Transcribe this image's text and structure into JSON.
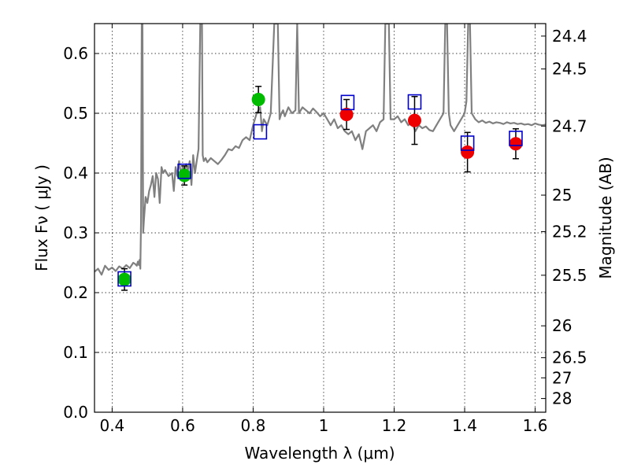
{
  "chart_data": {
    "type": "scatter",
    "xlabel": "Wavelength  λ (μm)",
    "ylabel": "Flux  Fν  ( μJy )",
    "y2label": "Magnitude (AB)",
    "xlim": [
      0.35,
      1.63
    ],
    "ylim": [
      0.0,
      0.65
    ],
    "x_ticks": [
      {
        "value": 0.4,
        "label": "0.4"
      },
      {
        "value": 0.6,
        "label": "0.6"
      },
      {
        "value": 0.8,
        "label": "0.8"
      },
      {
        "value": 1.0,
        "label": "1"
      },
      {
        "value": 1.2,
        "label": "1.2"
      },
      {
        "value": 1.4,
        "label": "1.4"
      },
      {
        "value": 1.6,
        "label": "1.6"
      }
    ],
    "y_ticks": [
      {
        "value": 0.0,
        "label": "0.0"
      },
      {
        "value": 0.1,
        "label": "0.1"
      },
      {
        "value": 0.2,
        "label": "0.2"
      },
      {
        "value": 0.3,
        "label": "0.3"
      },
      {
        "value": 0.4,
        "label": "0.4"
      },
      {
        "value": 0.5,
        "label": "0.5"
      },
      {
        "value": 0.6,
        "label": "0.6"
      }
    ],
    "y2_ticks": [
      {
        "flux": 0.6291,
        "label": "24.4"
      },
      {
        "flux": 0.5741,
        "label": "24.5"
      },
      {
        "flux": 0.4786,
        "label": "24.7"
      },
      {
        "flux": 0.3631,
        "label": "25"
      },
      {
        "flux": 0.302,
        "label": "25.2"
      },
      {
        "flux": 0.2291,
        "label": "25.5"
      },
      {
        "flux": 0.1445,
        "label": "26"
      },
      {
        "flux": 0.0912,
        "label": "26.5"
      },
      {
        "flux": 0.0575,
        "label": "27"
      },
      {
        "flux": 0.0229,
        "label": "28"
      }
    ],
    "grid": true,
    "colors": {
      "model": "#808080",
      "green": "#00bb00",
      "red": "#ee0000",
      "squares": "#0000cc",
      "errorbars": "#000000"
    },
    "series": [
      {
        "kind": "line",
        "x": [
          0.35,
          0.36,
          0.37,
          0.38,
          0.39,
          0.4,
          0.41,
          0.42,
          0.43,
          0.44,
          0.45,
          0.46,
          0.465,
          0.47,
          0.473,
          0.476,
          0.478,
          0.48,
          0.482,
          0.484,
          0.486,
          0.488,
          0.49,
          0.495,
          0.5,
          0.505,
          0.51,
          0.515,
          0.52,
          0.525,
          0.53,
          0.535,
          0.54,
          0.545,
          0.55,
          0.56,
          0.57,
          0.575,
          0.58,
          0.585,
          0.59,
          0.595,
          0.6,
          0.605,
          0.61,
          0.615,
          0.62,
          0.625,
          0.63,
          0.635,
          0.64,
          0.645,
          0.65,
          0.652,
          0.655,
          0.657,
          0.66,
          0.665,
          0.67,
          0.68,
          0.69,
          0.7,
          0.71,
          0.72,
          0.73,
          0.74,
          0.75,
          0.76,
          0.77,
          0.78,
          0.79,
          0.8,
          0.81,
          0.82,
          0.825,
          0.83,
          0.84,
          0.85,
          0.86,
          0.865,
          0.87,
          0.875,
          0.88,
          0.885,
          0.89,
          0.9,
          0.91,
          0.92,
          0.925,
          0.93,
          0.935,
          0.94,
          0.95,
          0.96,
          0.97,
          0.98,
          0.99,
          1.0,
          1.01,
          1.02,
          1.03,
          1.04,
          1.05,
          1.06,
          1.07,
          1.08,
          1.09,
          1.1,
          1.11,
          1.12,
          1.13,
          1.14,
          1.15,
          1.16,
          1.17,
          1.175,
          1.18,
          1.185,
          1.19,
          1.2,
          1.21,
          1.22,
          1.23,
          1.24,
          1.25,
          1.26,
          1.27,
          1.28,
          1.29,
          1.3,
          1.31,
          1.32,
          1.33,
          1.34,
          1.345,
          1.35,
          1.355,
          1.36,
          1.37,
          1.38,
          1.39,
          1.4,
          1.405,
          1.41,
          1.415,
          1.42,
          1.43,
          1.44,
          1.45,
          1.46,
          1.47,
          1.48,
          1.49,
          1.5,
          1.51,
          1.52,
          1.53,
          1.54,
          1.55,
          1.56,
          1.57,
          1.58,
          1.59,
          1.6,
          1.61,
          1.62,
          1.63
        ],
        "y": [
          0.235,
          0.24,
          0.23,
          0.245,
          0.238,
          0.242,
          0.236,
          0.244,
          0.24,
          0.246,
          0.241,
          0.25,
          0.248,
          0.245,
          0.252,
          0.246,
          0.255,
          0.24,
          0.32,
          0.65,
          0.65,
          0.3,
          0.32,
          0.36,
          0.35,
          0.37,
          0.38,
          0.395,
          0.36,
          0.4,
          0.39,
          0.35,
          0.41,
          0.4,
          0.405,
          0.395,
          0.4,
          0.37,
          0.41,
          0.395,
          0.42,
          0.398,
          0.41,
          0.4,
          0.415,
          0.405,
          0.42,
          0.38,
          0.43,
          0.4,
          0.42,
          0.44,
          0.65,
          0.65,
          0.65,
          0.43,
          0.42,
          0.425,
          0.418,
          0.425,
          0.42,
          0.415,
          0.422,
          0.43,
          0.44,
          0.438,
          0.445,
          0.442,
          0.455,
          0.46,
          0.455,
          0.48,
          0.5,
          0.51,
          0.47,
          0.49,
          0.48,
          0.5,
          0.65,
          0.65,
          0.65,
          0.49,
          0.5,
          0.505,
          0.495,
          0.51,
          0.5,
          0.505,
          0.65,
          0.5,
          0.505,
          0.51,
          0.505,
          0.5,
          0.508,
          0.502,
          0.495,
          0.5,
          0.49,
          0.48,
          0.49,
          0.475,
          0.48,
          0.47,
          0.465,
          0.47,
          0.455,
          0.465,
          0.44,
          0.47,
          0.475,
          0.48,
          0.47,
          0.485,
          0.49,
          0.65,
          0.65,
          0.65,
          0.49,
          0.49,
          0.495,
          0.485,
          0.49,
          0.48,
          0.485,
          0.47,
          0.48,
          0.475,
          0.478,
          0.472,
          0.47,
          0.48,
          0.49,
          0.5,
          0.65,
          0.65,
          0.5,
          0.48,
          0.47,
          0.48,
          0.49,
          0.5,
          0.52,
          0.65,
          0.65,
          0.5,
          0.49,
          0.485,
          0.488,
          0.484,
          0.486,
          0.483,
          0.485,
          0.484,
          0.482,
          0.485,
          0.483,
          0.484,
          0.482,
          0.483,
          0.481,
          0.482,
          0.48,
          0.483,
          0.481,
          0.48,
          0.481
        ]
      },
      {
        "kind": "points",
        "marker": "circle",
        "color": "green",
        "x": [
          0.435,
          0.605,
          0.815
        ],
        "y": [
          0.222,
          0.396,
          0.523
        ],
        "yerr": [
          0.018,
          0.016,
          0.022
        ]
      },
      {
        "kind": "points",
        "marker": "circle",
        "color": "red",
        "x": [
          1.065,
          1.258,
          1.408,
          1.545
        ],
        "y": [
          0.498,
          0.488,
          0.435,
          0.449
        ],
        "yerr": [
          0.025,
          0.04,
          0.033,
          0.025
        ]
      },
      {
        "kind": "points",
        "marker": "square",
        "color": "squares",
        "x": [
          0.435,
          0.605,
          0.82,
          1.068,
          1.258,
          1.408,
          1.545
        ],
        "y": [
          0.223,
          0.403,
          0.469,
          0.518,
          0.519,
          0.45,
          0.458
        ]
      }
    ]
  }
}
